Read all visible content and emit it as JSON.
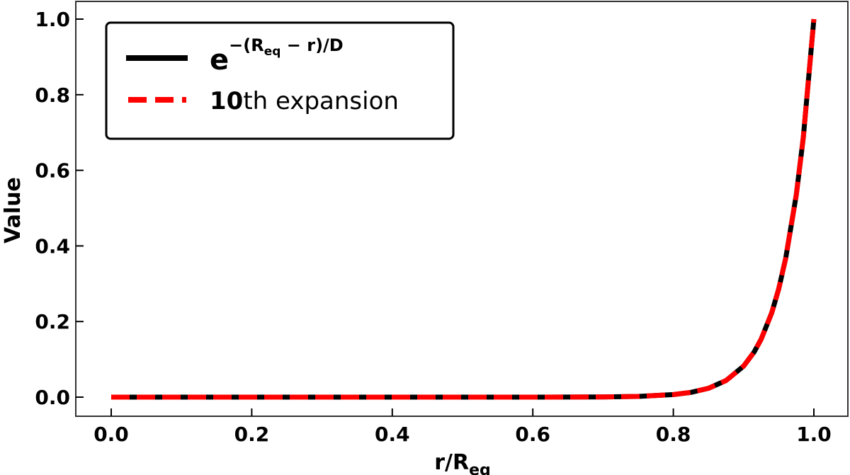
{
  "chart_data": {
    "type": "line",
    "title": "",
    "xlabel": "r/R_eq",
    "xlabel_main": "r/R",
    "xlabel_sub": "eq",
    "ylabel": "Value",
    "xlim": [
      -0.05,
      1.05
    ],
    "ylim": [
      -0.05,
      1.05
    ],
    "xticks": [
      "0.0",
      "0.2",
      "0.4",
      "0.6",
      "0.8",
      "1.0"
    ],
    "yticks": [
      "0.0",
      "0.2",
      "0.4",
      "0.6",
      "0.8",
      "1.0"
    ],
    "grid": false,
    "legend_position": "upper left",
    "x": [
      0.0,
      0.1,
      0.2,
      0.3,
      0.4,
      0.5,
      0.6,
      0.65,
      0.7,
      0.75,
      0.8,
      0.825,
      0.85,
      0.875,
      0.9,
      0.915,
      0.925,
      0.94,
      0.95,
      0.96,
      0.975,
      0.985,
      1.0
    ],
    "series": [
      {
        "name": "e^{-(R_eq - r)/D}",
        "color": "#000000",
        "style": "solid",
        "values": [
          0.0,
          0.0,
          0.0,
          0.0,
          0.0,
          0.0,
          0.0,
          0.0002,
          0.0006,
          0.0019,
          0.0067,
          0.0126,
          0.0235,
          0.0439,
          0.0821,
          0.1194,
          0.1534,
          0.2231,
          0.2865,
          0.3679,
          0.5353,
          0.6873,
          1.0
        ]
      },
      {
        "name": "10th expansion",
        "color": "#ff0000",
        "style": "dashed",
        "values": [
          0.0,
          0.0,
          0.0,
          0.0,
          0.0,
          0.0,
          0.0,
          0.0002,
          0.0006,
          0.0019,
          0.0067,
          0.0126,
          0.0235,
          0.0439,
          0.0821,
          0.1194,
          0.1534,
          0.2231,
          0.2865,
          0.3679,
          0.5353,
          0.6873,
          1.0
        ]
      }
    ]
  },
  "legend": {
    "items": [
      {
        "base": "e",
        "exponent_prefix": "−(R",
        "exponent_sub": "eq",
        "exponent_suffix": " − r)/D",
        "color": "#000000",
        "style": "solid"
      },
      {
        "bold_part": "10",
        "rest": "th expansion",
        "color": "#ff0000",
        "style": "dashed"
      }
    ]
  },
  "colors": {
    "exact": "#000000",
    "expansion": "#ff0000",
    "axes": "#333333"
  }
}
